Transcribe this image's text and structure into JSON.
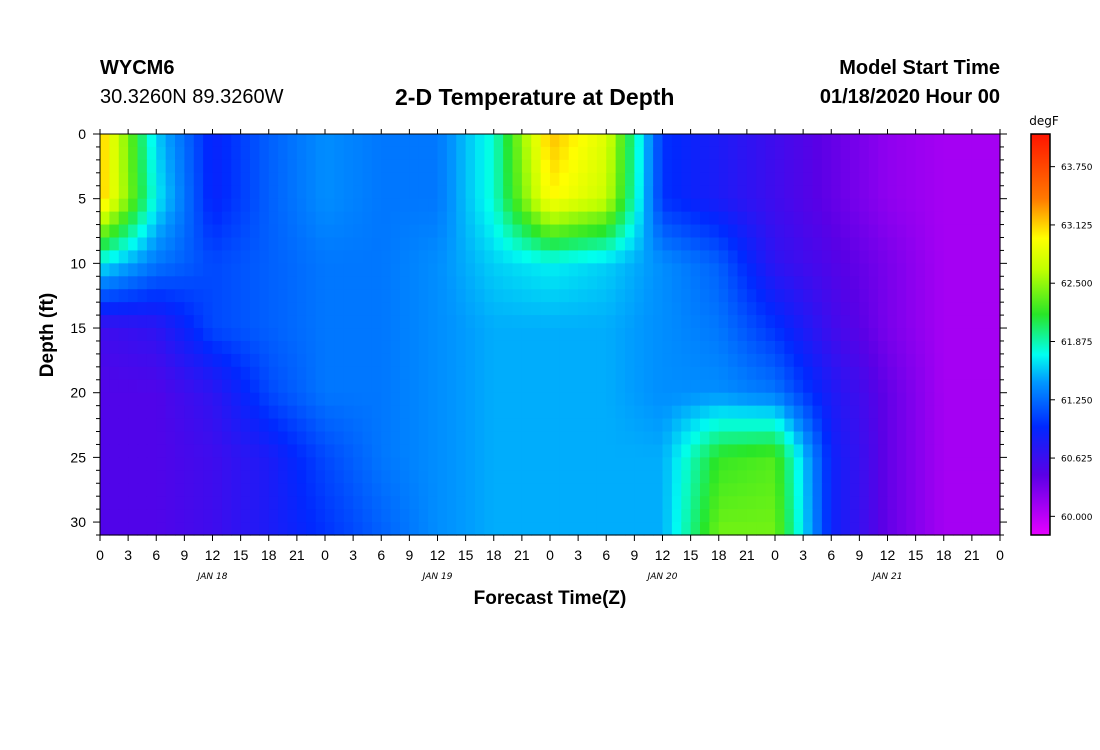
{
  "header": {
    "station": "WYCM6",
    "latlon": "30.3260N 89.3260W",
    "title": "2-D Temperature at Depth",
    "model_start_label": "Model Start Time",
    "model_start_value": "01/18/2020 Hour 00"
  },
  "chart_data": {
    "type": "heatmap",
    "title": "2-D Temperature at Depth",
    "xlabel": "Forecast Time(Z)",
    "ylabel": "Depth (ft)",
    "x_hours_range": [
      0,
      96
    ],
    "y_depth_range": [
      0,
      31
    ],
    "y_inverted": true,
    "x_tick_labels": [
      "0",
      "3",
      "6",
      "9",
      "12",
      "15",
      "18",
      "21",
      "0",
      "3",
      "6",
      "9",
      "12",
      "15",
      "18",
      "21",
      "0",
      "3",
      "6",
      "9",
      "12",
      "15",
      "18",
      "21",
      "0",
      "3",
      "6",
      "9",
      "12",
      "15",
      "18",
      "21",
      "0"
    ],
    "y_ticks": [
      0,
      5,
      10,
      15,
      20,
      25,
      30
    ],
    "day_labels": [
      {
        "text": "JAN 18",
        "hour": 12
      },
      {
        "text": "JAN 19",
        "hour": 36
      },
      {
        "text": "JAN 20",
        "hour": 60
      },
      {
        "text": "JAN 21",
        "hour": 84
      }
    ],
    "colorbar": {
      "unit": "degF",
      "vmin": 59.8,
      "vmax": 64.1,
      "tick_values": [
        60.0,
        60.625,
        61.25,
        61.875,
        62.5,
        63.125,
        63.75
      ],
      "tick_labels": [
        "60.000",
        "60.625",
        "61.250",
        "61.875",
        "62.500",
        "63.125",
        "63.750"
      ]
    },
    "grid_hours": [
      0,
      6,
      12,
      18,
      24,
      30,
      36,
      42,
      48,
      54,
      60,
      66,
      72,
      78,
      84,
      90,
      96
    ],
    "grid_depths": [
      0,
      5,
      10,
      15,
      20,
      25,
      31
    ],
    "values": [
      [
        63.2,
        61.6,
        60.9,
        61.2,
        61.4,
        61.3,
        61.3,
        61.8,
        63.2,
        62.8,
        61.0,
        60.8,
        60.6,
        60.4,
        60.2,
        60.1,
        60.1
      ],
      [
        63.2,
        61.7,
        60.9,
        61.2,
        61.4,
        61.3,
        61.3,
        61.8,
        63.0,
        62.7,
        61.0,
        60.8,
        60.6,
        60.4,
        60.2,
        60.1,
        60.1
      ],
      [
        61.7,
        61.3,
        61.1,
        61.2,
        61.3,
        61.3,
        61.4,
        61.6,
        61.7,
        61.6,
        61.4,
        61.2,
        60.7,
        60.5,
        60.3,
        60.1,
        60.1
      ],
      [
        60.6,
        60.7,
        61.1,
        61.2,
        61.3,
        61.3,
        61.4,
        61.5,
        61.5,
        61.5,
        61.4,
        61.3,
        61.0,
        60.6,
        60.3,
        60.1,
        60.1
      ],
      [
        60.5,
        60.5,
        60.7,
        61.1,
        61.3,
        61.3,
        61.4,
        61.5,
        61.5,
        61.5,
        61.4,
        61.4,
        61.3,
        60.8,
        60.4,
        60.1,
        60.1
      ],
      [
        60.5,
        60.5,
        60.6,
        60.8,
        61.1,
        61.3,
        61.4,
        61.5,
        61.5,
        61.5,
        61.5,
        62.2,
        62.3,
        60.9,
        60.4,
        60.1,
        60.1
      ],
      [
        60.5,
        60.5,
        60.6,
        60.8,
        61.0,
        61.2,
        61.4,
        61.5,
        61.5,
        61.5,
        61.5,
        62.4,
        62.4,
        60.9,
        60.4,
        60.1,
        60.1
      ]
    ]
  }
}
